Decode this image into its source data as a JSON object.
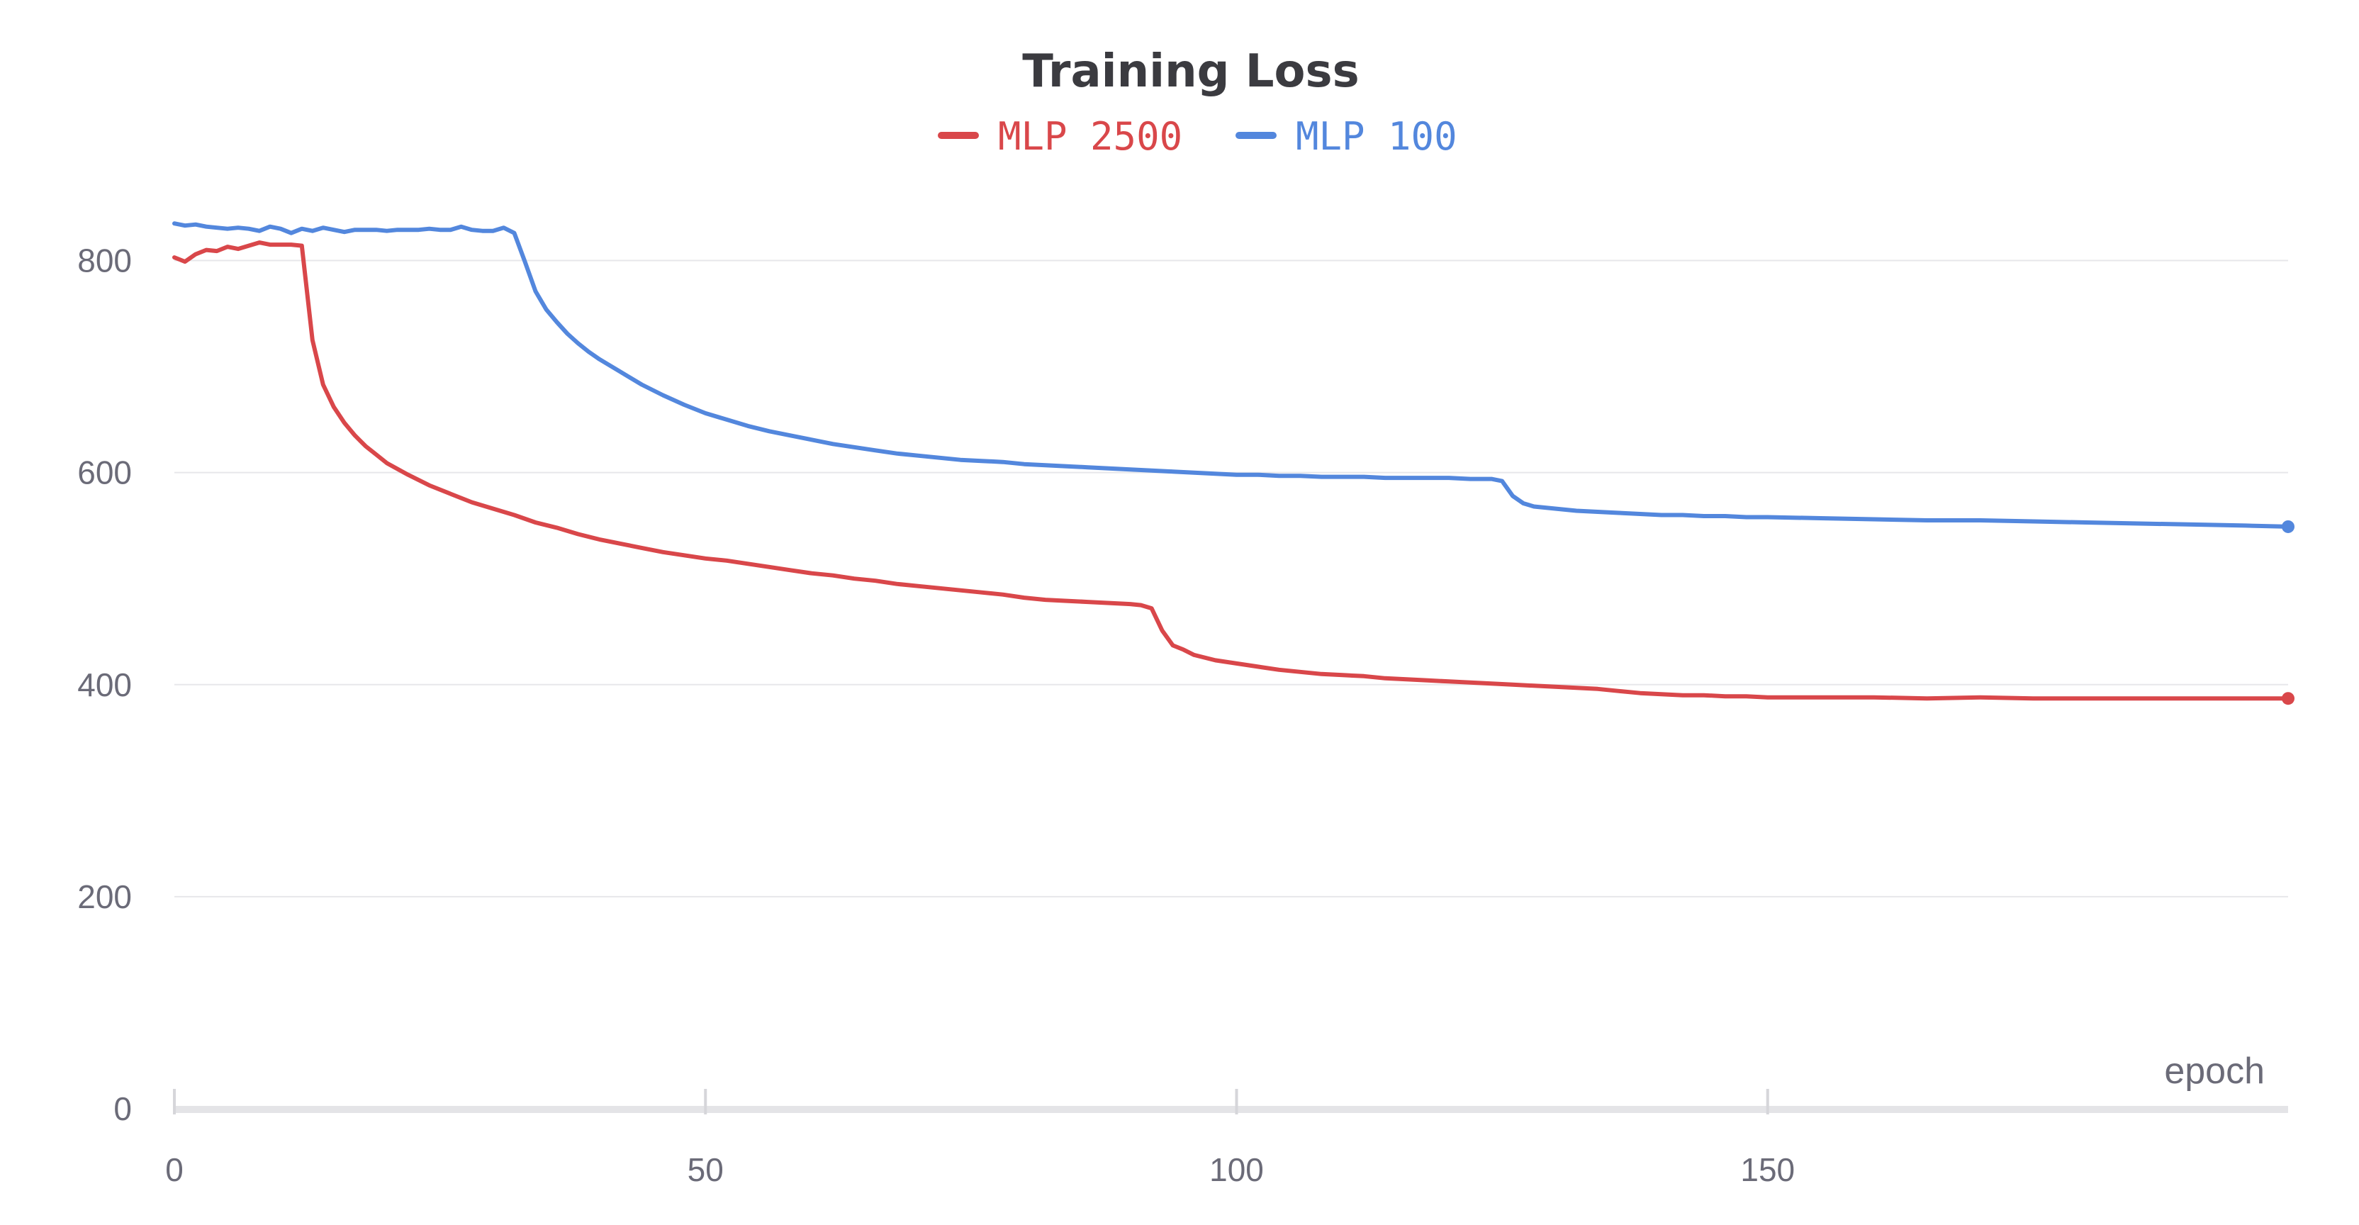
{
  "chart_data": {
    "type": "line",
    "title": "Training Loss",
    "xlabel": "epoch",
    "ylabel": "",
    "xlim": [
      0,
      199
    ],
    "ylim": [
      0,
      900
    ],
    "x_ticks": [
      0,
      50,
      100,
      150
    ],
    "y_ticks": [
      0,
      200,
      400,
      600,
      800
    ],
    "grid": "horizontal",
    "legend_position": "top-center",
    "series": [
      {
        "name": "MLP 2500",
        "color": "#d9474a",
        "points": [
          [
            0,
            803
          ],
          [
            1,
            799
          ],
          [
            2,
            806
          ],
          [
            3,
            810
          ],
          [
            4,
            809
          ],
          [
            5,
            813
          ],
          [
            6,
            811
          ],
          [
            7,
            814
          ],
          [
            8,
            817
          ],
          [
            9,
            815
          ],
          [
            10,
            815
          ],
          [
            11,
            815
          ],
          [
            12,
            814
          ],
          [
            13,
            725
          ],
          [
            14,
            683
          ],
          [
            15,
            662
          ],
          [
            16,
            647
          ],
          [
            17,
            635
          ],
          [
            18,
            625
          ],
          [
            19,
            617
          ],
          [
            20,
            609
          ],
          [
            22,
            598
          ],
          [
            24,
            588
          ],
          [
            26,
            580
          ],
          [
            28,
            572
          ],
          [
            30,
            566
          ],
          [
            32,
            560
          ],
          [
            34,
            553
          ],
          [
            36,
            548
          ],
          [
            38,
            542
          ],
          [
            40,
            537
          ],
          [
            42,
            533
          ],
          [
            44,
            529
          ],
          [
            46,
            525
          ],
          [
            48,
            522
          ],
          [
            50,
            519
          ],
          [
            52,
            517
          ],
          [
            54,
            514
          ],
          [
            56,
            511
          ],
          [
            58,
            508
          ],
          [
            60,
            505
          ],
          [
            62,
            503
          ],
          [
            64,
            500
          ],
          [
            66,
            498
          ],
          [
            68,
            495
          ],
          [
            70,
            493
          ],
          [
            72,
            491
          ],
          [
            74,
            489
          ],
          [
            76,
            487
          ],
          [
            78,
            485
          ],
          [
            80,
            482
          ],
          [
            82,
            480
          ],
          [
            84,
            479
          ],
          [
            86,
            478
          ],
          [
            88,
            477
          ],
          [
            90,
            476
          ],
          [
            91,
            475
          ],
          [
            92,
            472
          ],
          [
            93,
            451
          ],
          [
            94,
            437
          ],
          [
            95,
            433
          ],
          [
            96,
            428
          ],
          [
            98,
            423
          ],
          [
            100,
            420
          ],
          [
            102,
            417
          ],
          [
            104,
            414
          ],
          [
            106,
            412
          ],
          [
            108,
            410
          ],
          [
            110,
            409
          ],
          [
            112,
            408
          ],
          [
            114,
            406
          ],
          [
            116,
            405
          ],
          [
            118,
            404
          ],
          [
            120,
            403
          ],
          [
            122,
            402
          ],
          [
            124,
            401
          ],
          [
            126,
            400
          ],
          [
            128,
            399
          ],
          [
            130,
            398
          ],
          [
            132,
            397
          ],
          [
            134,
            396
          ],
          [
            136,
            394
          ],
          [
            138,
            392
          ],
          [
            140,
            391
          ],
          [
            142,
            390
          ],
          [
            144,
            390
          ],
          [
            146,
            389
          ],
          [
            148,
            389
          ],
          [
            150,
            388
          ],
          [
            155,
            388
          ],
          [
            160,
            388
          ],
          [
            165,
            387
          ],
          [
            170,
            388
          ],
          [
            175,
            387
          ],
          [
            180,
            387
          ],
          [
            185,
            387
          ],
          [
            190,
            387
          ],
          [
            195,
            387
          ],
          [
            199,
            387
          ]
        ]
      },
      {
        "name": "MLP 100",
        "color": "#5387dd",
        "points": [
          [
            0,
            835
          ],
          [
            1,
            833
          ],
          [
            2,
            834
          ],
          [
            3,
            832
          ],
          [
            4,
            831
          ],
          [
            5,
            830
          ],
          [
            6,
            831
          ],
          [
            7,
            830
          ],
          [
            8,
            828
          ],
          [
            9,
            832
          ],
          [
            10,
            830
          ],
          [
            11,
            826
          ],
          [
            12,
            830
          ],
          [
            13,
            828
          ],
          [
            14,
            831
          ],
          [
            15,
            829
          ],
          [
            16,
            827
          ],
          [
            17,
            829
          ],
          [
            18,
            829
          ],
          [
            19,
            829
          ],
          [
            20,
            828
          ],
          [
            21,
            829
          ],
          [
            22,
            829
          ],
          [
            23,
            829
          ],
          [
            24,
            830
          ],
          [
            25,
            829
          ],
          [
            26,
            829
          ],
          [
            27,
            832
          ],
          [
            28,
            829
          ],
          [
            29,
            828
          ],
          [
            30,
            828
          ],
          [
            31,
            831
          ],
          [
            32,
            826
          ],
          [
            33,
            799
          ],
          [
            34,
            771
          ],
          [
            35,
            754
          ],
          [
            36,
            742
          ],
          [
            37,
            731
          ],
          [
            38,
            722
          ],
          [
            39,
            714
          ],
          [
            40,
            707
          ],
          [
            42,
            695
          ],
          [
            44,
            683
          ],
          [
            46,
            673
          ],
          [
            48,
            664
          ],
          [
            50,
            656
          ],
          [
            52,
            650
          ],
          [
            54,
            644
          ],
          [
            56,
            639
          ],
          [
            58,
            635
          ],
          [
            60,
            631
          ],
          [
            62,
            627
          ],
          [
            64,
            624
          ],
          [
            66,
            621
          ],
          [
            68,
            618
          ],
          [
            70,
            616
          ],
          [
            72,
            614
          ],
          [
            74,
            612
          ],
          [
            76,
            611
          ],
          [
            78,
            610
          ],
          [
            80,
            608
          ],
          [
            82,
            607
          ],
          [
            84,
            606
          ],
          [
            86,
            605
          ],
          [
            88,
            604
          ],
          [
            90,
            603
          ],
          [
            92,
            602
          ],
          [
            94,
            601
          ],
          [
            96,
            600
          ],
          [
            98,
            599
          ],
          [
            100,
            598
          ],
          [
            102,
            598
          ],
          [
            104,
            597
          ],
          [
            106,
            597
          ],
          [
            108,
            596
          ],
          [
            110,
            596
          ],
          [
            112,
            596
          ],
          [
            114,
            595
          ],
          [
            116,
            595
          ],
          [
            118,
            595
          ],
          [
            120,
            595
          ],
          [
            122,
            594
          ],
          [
            124,
            594
          ],
          [
            125,
            592
          ],
          [
            126,
            578
          ],
          [
            127,
            571
          ],
          [
            128,
            568
          ],
          [
            130,
            566
          ],
          [
            132,
            564
          ],
          [
            134,
            563
          ],
          [
            136,
            562
          ],
          [
            138,
            561
          ],
          [
            140,
            560
          ],
          [
            142,
            560
          ],
          [
            144,
            559
          ],
          [
            146,
            559
          ],
          [
            148,
            558
          ],
          [
            150,
            558
          ],
          [
            155,
            557
          ],
          [
            160,
            556
          ],
          [
            165,
            555
          ],
          [
            170,
            555
          ],
          [
            175,
            554
          ],
          [
            180,
            553
          ],
          [
            185,
            552
          ],
          [
            190,
            551
          ],
          [
            195,
            550
          ],
          [
            199,
            549
          ]
        ]
      }
    ]
  }
}
